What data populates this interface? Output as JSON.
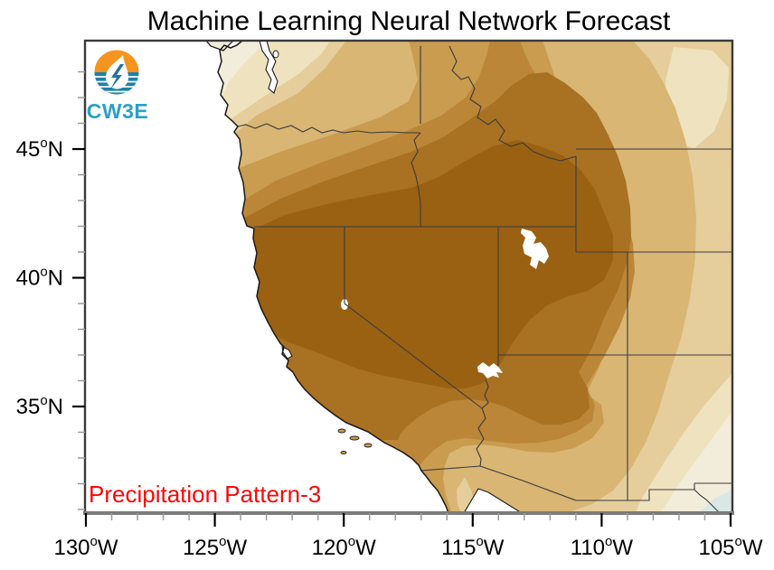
{
  "title": "Machine Learning Neural Network Forecast",
  "pattern_label": "Precipitation Pattern-3",
  "logo": {
    "text": "CW3E"
  },
  "axes": {
    "sup": "o",
    "x": {
      "labels": [
        "130",
        "125",
        "120",
        "115",
        "110",
        "105"
      ],
      "suffix": "W"
    },
    "y": {
      "labels": [
        "45",
        "40",
        "35"
      ],
      "suffix": "N"
    }
  },
  "map": {
    "region": "Western United States",
    "lon_range_degW": [
      130,
      105
    ],
    "lat_range_degN": [
      31,
      49
    ]
  },
  "colors": {
    "ocean": "#FFFFFF",
    "bands": [
      "#F2ECDB",
      "#EFE3BF",
      "#E5CE9B",
      "#D9B674",
      "#C99C50",
      "#BB8637",
      "#A97122",
      "#9A6113"
    ],
    "negative_patch": "#D9E8E4",
    "coast_line": "#1a1a1a",
    "border_line": "#3b3b3b",
    "frame": "#3a3a3a",
    "axis_bar": "#7b7b7b",
    "major_tick": "#000000",
    "minor_tick": "#9a9a9a",
    "title": "#000000",
    "pattern_label": "#FA0707",
    "logo_orange": "#F5941F",
    "logo_blue": "#1F81A8",
    "logo_bolt": "#20729C",
    "logo_text": "#2B9FC9"
  }
}
